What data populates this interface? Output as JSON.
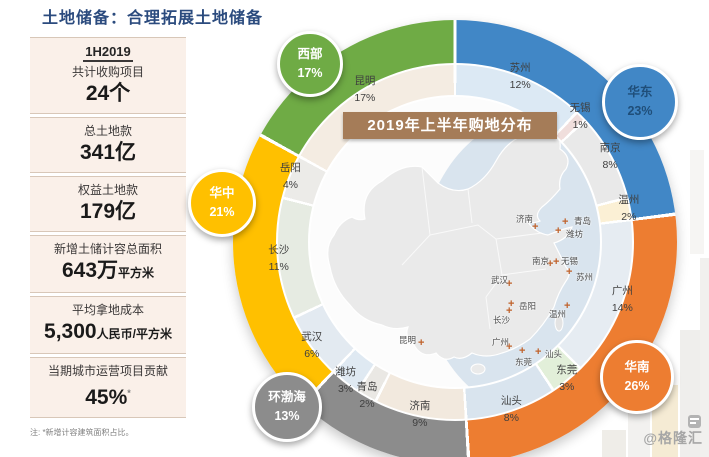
{
  "page": {
    "title": "土地储备：合理拓展土地储备",
    "note": "注: *新增计容建筑面积占比。",
    "watermark": "@格隆汇"
  },
  "stats": {
    "period": "1H2019",
    "items": [
      {
        "label": "共计收购项目",
        "value": "24个",
        "unit": "",
        "footnote": false
      },
      {
        "label": "总土地款",
        "value": "341亿",
        "unit": "",
        "footnote": false
      },
      {
        "label": "权益土地款",
        "value": "179亿",
        "unit": "",
        "footnote": false
      },
      {
        "label": "新增土储计容总面积",
        "value": "643万",
        "unit": "平方米",
        "footnote": false
      },
      {
        "label": "平均拿地成本",
        "value": "5,300",
        "unit": "人民币/平方米",
        "footnote": false
      },
      {
        "label": "当期城市运营项目贡献",
        "value": "45%",
        "unit": "",
        "footnote": true
      }
    ]
  },
  "chart_data": {
    "type": "donut",
    "title": "2019年上半年购地分布",
    "unit": "%",
    "legend_position": "around-ring",
    "regions": [
      {
        "name": "华东",
        "value": 23,
        "color": "#4187C6",
        "label_color": "#1F4E79"
      },
      {
        "name": "华南",
        "value": 26,
        "color": "#ED7D31",
        "label_color": "#FFFFFF"
      },
      {
        "name": "环渤海",
        "value": 13,
        "color": "#8C8C8C",
        "label_color": "#FFFFFF"
      },
      {
        "name": "华中",
        "value": 21,
        "color": "#FFC000",
        "label_color": "#FFFFFF"
      },
      {
        "name": "西部",
        "value": 17,
        "color": "#6FAB45",
        "label_color": "#FFFFFF"
      }
    ],
    "cities": [
      {
        "name": "苏州",
        "value": 12,
        "region": "华东",
        "tint": "#DCE9F4"
      },
      {
        "name": "无锡",
        "value": 1,
        "region": "华东",
        "tint": "#F0DEDC"
      },
      {
        "name": "南京",
        "value": 8,
        "region": "华东",
        "tint": "#E9E9E9"
      },
      {
        "name": "温州",
        "value": 2,
        "region": "华东",
        "tint": "#FBF0D5"
      },
      {
        "name": "广州",
        "value": 14,
        "region": "华南",
        "tint": "#E6ECF2"
      },
      {
        "name": "东莞",
        "value": 3,
        "region": "华南",
        "tint": "#E2EFD9"
      },
      {
        "name": "汕头",
        "value": 8,
        "region": "华南",
        "tint": "#D9E4EE"
      },
      {
        "name": "济南",
        "value": 9,
        "region": "环渤海",
        "tint": "#F2E9DE"
      },
      {
        "name": "青岛",
        "value": 2,
        "region": "环渤海",
        "tint": "#EAE8E4"
      },
      {
        "name": "潍坊",
        "value": 3,
        "region": "环渤海",
        "tint": "#DFE9F2"
      },
      {
        "name": "武汉",
        "value": 6,
        "region": "华中",
        "tint": "#E3EAF1"
      },
      {
        "name": "长沙",
        "value": 11,
        "region": "华中",
        "tint": "#E6EBE2"
      },
      {
        "name": "岳阳",
        "value": 4,
        "region": "华中",
        "tint": "#ECEBE8"
      },
      {
        "name": "昆明",
        "value": 17,
        "region": "西部",
        "tint": "#F4ECE2"
      }
    ],
    "map_cities": [
      {
        "name": "济南",
        "label": [
          516,
          213
        ],
        "marker": [
          536,
          227
        ]
      },
      {
        "name": "青岛",
        "label": [
          574,
          215
        ],
        "marker": [
          566,
          222
        ]
      },
      {
        "name": "潍坊",
        "label": [
          566,
          228
        ],
        "marker": [
          559,
          231
        ]
      },
      {
        "name": "南京",
        "label": [
          532,
          255
        ],
        "marker": [
          551,
          264
        ]
      },
      {
        "name": "无锡",
        "label": [
          561,
          255
        ],
        "marker": [
          557,
          262
        ]
      },
      {
        "name": "苏州",
        "label": [
          576,
          271
        ],
        "marker": [
          570,
          272
        ]
      },
      {
        "name": "武汉",
        "label": [
          491,
          274
        ],
        "marker": [
          510,
          284
        ]
      },
      {
        "name": "岳阳",
        "label": [
          519,
          300
        ],
        "marker": [
          512,
          304
        ]
      },
      {
        "name": "长沙",
        "label": [
          493,
          314
        ],
        "marker": [
          510,
          311
        ]
      },
      {
        "name": "温州",
        "label": [
          549,
          308
        ],
        "marker": [
          568,
          306
        ]
      },
      {
        "name": "昆明",
        "label": [
          399,
          334
        ],
        "marker": [
          422,
          343
        ]
      },
      {
        "name": "广州",
        "label": [
          492,
          336
        ],
        "marker": [
          510,
          347
        ]
      },
      {
        "name": "东莞",
        "label": [
          515,
          356
        ],
        "marker": [
          523,
          351
        ]
      },
      {
        "name": "汕头",
        "label": [
          545,
          348
        ],
        "marker": [
          539,
          352
        ]
      }
    ]
  }
}
